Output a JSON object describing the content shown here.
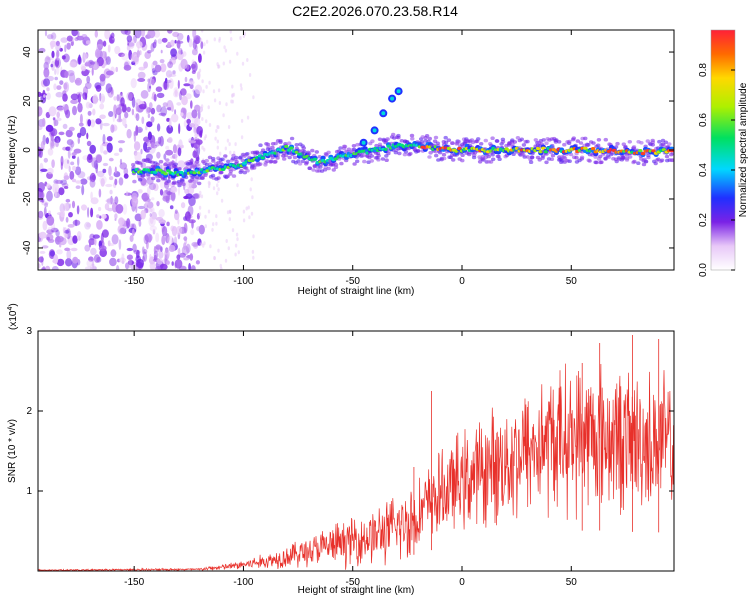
{
  "chart_data": [
    {
      "type": "heatmap",
      "title": "C2E2.2026.070.23.58.R14",
      "xlabel": "Height of straight line (km)",
      "ylabel": "Frequency (Hz)",
      "xlim": [
        -194,
        97
      ],
      "ylim": [
        -49,
        49
      ],
      "xticks": [
        -150,
        -100,
        -50,
        0,
        50
      ],
      "yticks": [
        -40,
        -20,
        0,
        20,
        40
      ],
      "colorbar": {
        "label": "Normalized spectral amplitude",
        "range": [
          0.0,
          0.96
        ],
        "ticks": [
          0.0,
          0.2,
          0.4,
          0.6,
          0.8
        ]
      },
      "ridge": [
        {
          "x": -145,
          "y": -8.5
        },
        {
          "x": -130,
          "y": -9.5
        },
        {
          "x": -115,
          "y": -8
        },
        {
          "x": -100,
          "y": -6
        },
        {
          "x": -90,
          "y": -2
        },
        {
          "x": -80,
          "y": 1
        },
        {
          "x": -75,
          "y": -1
        },
        {
          "x": -65,
          "y": -5
        },
        {
          "x": -55,
          "y": -3
        },
        {
          "x": -45,
          "y": -1
        },
        {
          "x": -35,
          "y": 1
        },
        {
          "x": -25,
          "y": 2
        },
        {
          "x": -10,
          "y": 0.5
        },
        {
          "x": 0,
          "y": 0
        },
        {
          "x": 20,
          "y": 0
        },
        {
          "x": 40,
          "y": 0
        },
        {
          "x": 60,
          "y": 0
        },
        {
          "x": 80,
          "y": -1
        },
        {
          "x": 97,
          "y": -0.5
        }
      ],
      "branch": [
        {
          "x": -45,
          "y": 3
        },
        {
          "x": -40,
          "y": 8
        },
        {
          "x": -36,
          "y": 15
        },
        {
          "x": -32,
          "y": 21
        },
        {
          "x": -29,
          "y": 24
        }
      ]
    },
    {
      "type": "line",
      "xlabel": "Height of straight line (km)",
      "ylabel": "SNR (10 * v/v)",
      "y_multiplier": "(x10^4)",
      "y_multiplier_base": "(x10",
      "y_multiplier_exp": "4",
      "xlim": [
        -194,
        97
      ],
      "ylim": [
        0,
        3
      ],
      "xticks": [
        -150,
        -100,
        -50,
        0,
        50
      ],
      "yticks": [
        1,
        2,
        3
      ],
      "line_color": "#e8302a",
      "trend": [
        {
          "x": -194,
          "y": 0.01
        },
        {
          "x": -120,
          "y": 0.02
        },
        {
          "x": -105,
          "y": 0.06
        },
        {
          "x": -90,
          "y": 0.12
        },
        {
          "x": -70,
          "y": 0.25
        },
        {
          "x": -50,
          "y": 0.38
        },
        {
          "x": -35,
          "y": 0.48
        },
        {
          "x": -25,
          "y": 0.6
        },
        {
          "x": -15,
          "y": 0.85
        },
        {
          "x": -5,
          "y": 1.05
        },
        {
          "x": 10,
          "y": 1.25
        },
        {
          "x": 25,
          "y": 1.45
        },
        {
          "x": 40,
          "y": 1.62
        },
        {
          "x": 60,
          "y": 1.7
        },
        {
          "x": 80,
          "y": 1.62
        },
        {
          "x": 97,
          "y": 1.6
        }
      ],
      "peaks": [
        {
          "x": -14,
          "y": 2.25
        },
        {
          "x": -22,
          "y": 1.3
        },
        {
          "x": 63,
          "y": 2.85
        },
        {
          "x": 78,
          "y": 2.95
        },
        {
          "x": 90,
          "y": 2.9
        },
        {
          "x": 55,
          "y": 2.6
        }
      ]
    }
  ]
}
